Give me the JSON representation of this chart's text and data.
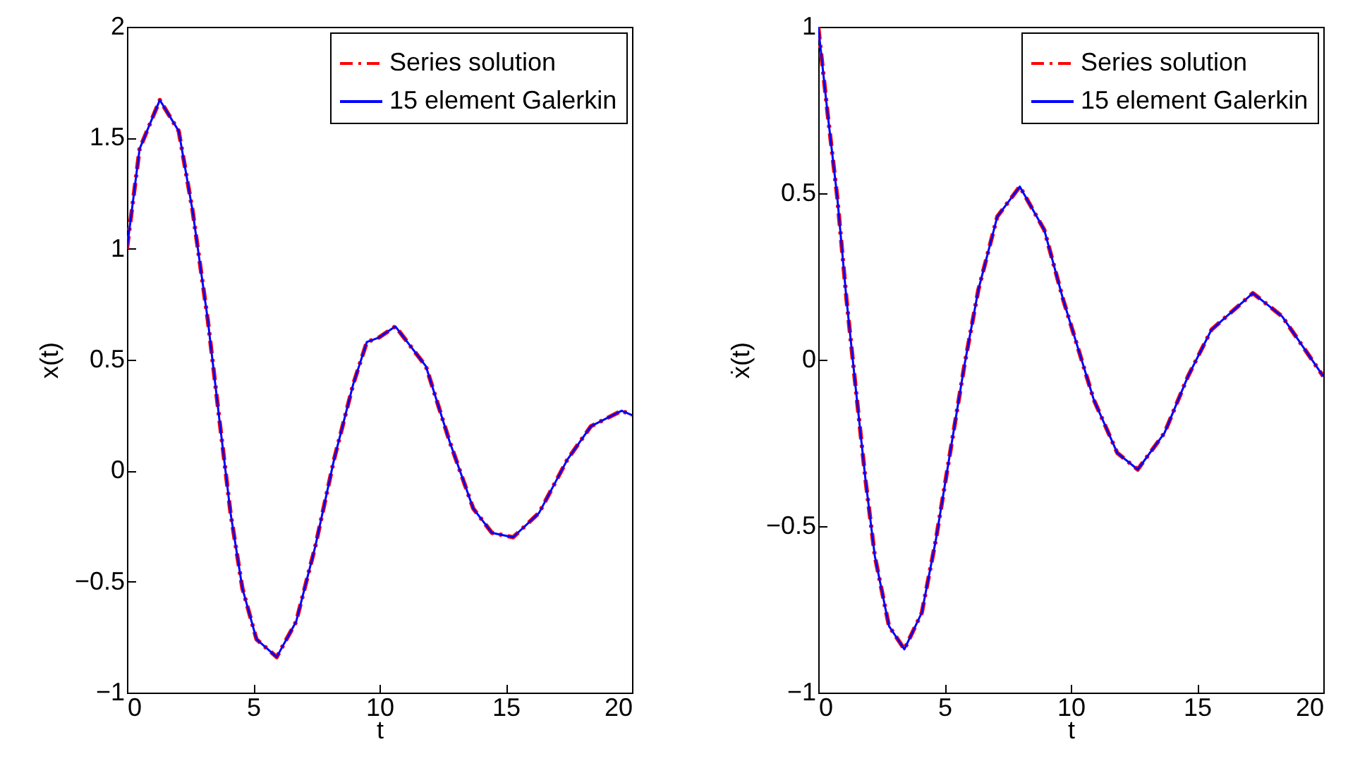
{
  "chart_data": [
    {
      "type": "line",
      "xlabel": "t",
      "ylabel": "x(t)",
      "xlim": [
        0,
        20
      ],
      "xticks": [
        0,
        5,
        10,
        15,
        20
      ],
      "ylim": [
        -1,
        2
      ],
      "yticks": [
        -1,
        -0.5,
        0,
        0.5,
        1,
        1.5,
        2
      ],
      "legend": "top right",
      "grid": false,
      "x": [
        0,
        0.5,
        1.3,
        2.05,
        2.6,
        3.2,
        3.65,
        4.1,
        4.57,
        5.13,
        5.93,
        6.7,
        7.46,
        8.2,
        8.96,
        9.5,
        9.98,
        10.63,
        11.84,
        12.78,
        13.71,
        14.45,
        15.29,
        16.32,
        17.44,
        18.37,
        19.59,
        20
      ],
      "series": [
        {
          "name": "Series solution",
          "color": "#ff0000",
          "line_style": "dashed",
          "values": [
            1,
            1.45,
            1.67,
            1.53,
            1.17,
            0.68,
            0.24,
            -0.19,
            -0.53,
            -0.76,
            -0.84,
            -0.68,
            -0.34,
            0.05,
            0.39,
            0.58,
            0.6,
            0.65,
            0.47,
            0.13,
            -0.17,
            -0.28,
            -0.3,
            -0.19,
            0.05,
            0.2,
            0.27,
            0.25
          ]
        },
        {
          "name": "15 element Galerkin",
          "color": "#0000ff",
          "line_style": "solid",
          "values": [
            1,
            1.45,
            1.67,
            1.53,
            1.17,
            0.68,
            0.24,
            -0.19,
            -0.53,
            -0.76,
            -0.84,
            -0.68,
            -0.34,
            0.05,
            0.39,
            0.58,
            0.6,
            0.65,
            0.47,
            0.13,
            -0.17,
            -0.28,
            -0.3,
            -0.19,
            0.05,
            0.2,
            0.27,
            0.25
          ]
        }
      ]
    },
    {
      "type": "line",
      "xlabel": "t",
      "ylabel": "ẋ(t)",
      "xlim": [
        0,
        20
      ],
      "xticks": [
        0,
        5,
        10,
        15,
        20
      ],
      "ylim": [
        -1,
        1
      ],
      "yticks": [
        -1,
        -0.5,
        0,
        0.5,
        1
      ],
      "legend": "top right",
      "grid": false,
      "x": [
        0,
        0.37,
        0.75,
        1.12,
        1.49,
        1.87,
        2.24,
        2.8,
        3.41,
        4.1,
        4.66,
        5.22,
        5.78,
        6.34,
        7.09,
        7.98,
        8.95,
        9.7,
        10.91,
        11.84,
        12.65,
        13.71,
        14.64,
        15.57,
        17.21,
        18.37,
        20
      ],
      "series": [
        {
          "name": "Series solution",
          "color": "#ff0000",
          "line_style": "dashed",
          "values": [
            1,
            0.74,
            0.49,
            0.18,
            -0.09,
            -0.36,
            -0.59,
            -0.8,
            -0.87,
            -0.76,
            -0.54,
            -0.28,
            -0.02,
            0.21,
            0.43,
            0.52,
            0.39,
            0.18,
            -0.12,
            -0.28,
            -0.33,
            -0.22,
            -0.05,
            0.09,
            0.2,
            0.13,
            -0.05
          ]
        },
        {
          "name": "15 element Galerkin",
          "color": "#0000ff",
          "line_style": "solid",
          "values": [
            1,
            0.74,
            0.49,
            0.18,
            -0.09,
            -0.36,
            -0.59,
            -0.8,
            -0.87,
            -0.76,
            -0.54,
            -0.28,
            -0.02,
            0.21,
            0.43,
            0.52,
            0.39,
            0.18,
            -0.12,
            -0.28,
            -0.33,
            -0.22,
            -0.05,
            0.09,
            0.2,
            0.13,
            -0.05
          ]
        }
      ]
    }
  ]
}
